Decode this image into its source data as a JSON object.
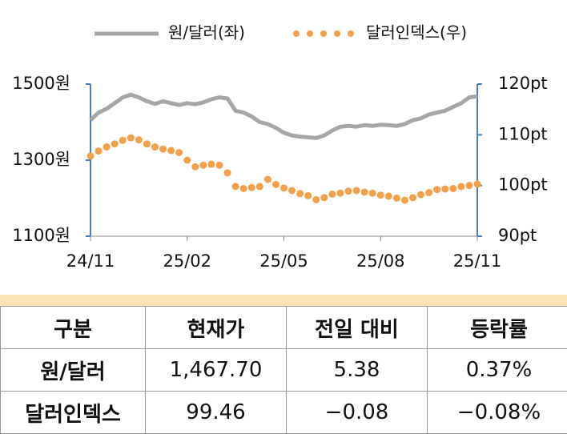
{
  "chart_data": {
    "type": "line",
    "categories": [
      "24/11",
      null,
      null,
      null,
      null,
      null,
      null,
      null,
      null,
      null,
      null,
      null,
      "25/02",
      null,
      null,
      null,
      null,
      null,
      null,
      null,
      null,
      null,
      null,
      null,
      "25/05",
      null,
      null,
      null,
      null,
      null,
      null,
      null,
      null,
      null,
      null,
      null,
      "25/08",
      null,
      null,
      null,
      null,
      null,
      null,
      null,
      null,
      null,
      null,
      null,
      "25/11"
    ],
    "series": [
      {
        "name": "원/달러(좌)",
        "color": "#a6a6a6",
        "style": "line",
        "values": [
          1405,
          1425,
          1435,
          1450,
          1465,
          1472,
          1465,
          1455,
          1448,
          1455,
          1450,
          1445,
          1450,
          1447,
          1452,
          1460,
          1465,
          1462,
          1430,
          1425,
          1415,
          1400,
          1395,
          1385,
          1372,
          1365,
          1362,
          1360,
          1358,
          1365,
          1378,
          1388,
          1390,
          1388,
          1392,
          1390,
          1393,
          1392,
          1390,
          1395,
          1405,
          1410,
          1420,
          1425,
          1430,
          1440,
          1450,
          1465,
          1468
        ]
      },
      {
        "name": "달러인덱스(우)",
        "color": "#f4a04b",
        "style": "dots",
        "axis": "y2",
        "values": [
          105.8,
          106.8,
          107.6,
          108.2,
          108.9,
          109.4,
          109.0,
          108.2,
          107.6,
          107.2,
          106.9,
          106.5,
          105.0,
          103.7,
          104.0,
          104.2,
          104.0,
          102.5,
          99.8,
          99.4,
          99.6,
          99.8,
          101.2,
          100.2,
          99.5,
          99.0,
          98.4,
          98.0,
          97.2,
          97.6,
          98.3,
          98.5,
          98.9,
          99.0,
          98.7,
          98.5,
          98.1,
          97.9,
          97.5,
          97.1,
          97.6,
          98.2,
          98.6,
          99.2,
          99.3,
          99.4,
          99.8,
          100.0,
          100.3
        ]
      }
    ],
    "ylim": [
      1100,
      1500
    ],
    "yticks": [
      {
        "value": 1100,
        "label": "1100원"
      },
      {
        "value": 1300,
        "label": "1300원"
      },
      {
        "value": 1500,
        "label": "1500원"
      }
    ],
    "y2lim": [
      90,
      120
    ],
    "y2ticks": [
      {
        "value": 90,
        "label": "90pt"
      },
      {
        "value": 100,
        "label": "100pt"
      },
      {
        "value": 110,
        "label": "110pt"
      },
      {
        "value": 120,
        "label": "120pt"
      }
    ],
    "axis_color": "#4a7ebb",
    "legend": "top"
  },
  "table": {
    "header": [
      "구분",
      "현재가",
      "전일 대비",
      "등락률"
    ],
    "rows": [
      [
        "원/달러",
        "1,467.70",
        "5.38",
        "0.37%"
      ],
      [
        "달러인덱스",
        "99.46",
        "−0.08",
        "−0.08%"
      ]
    ]
  }
}
